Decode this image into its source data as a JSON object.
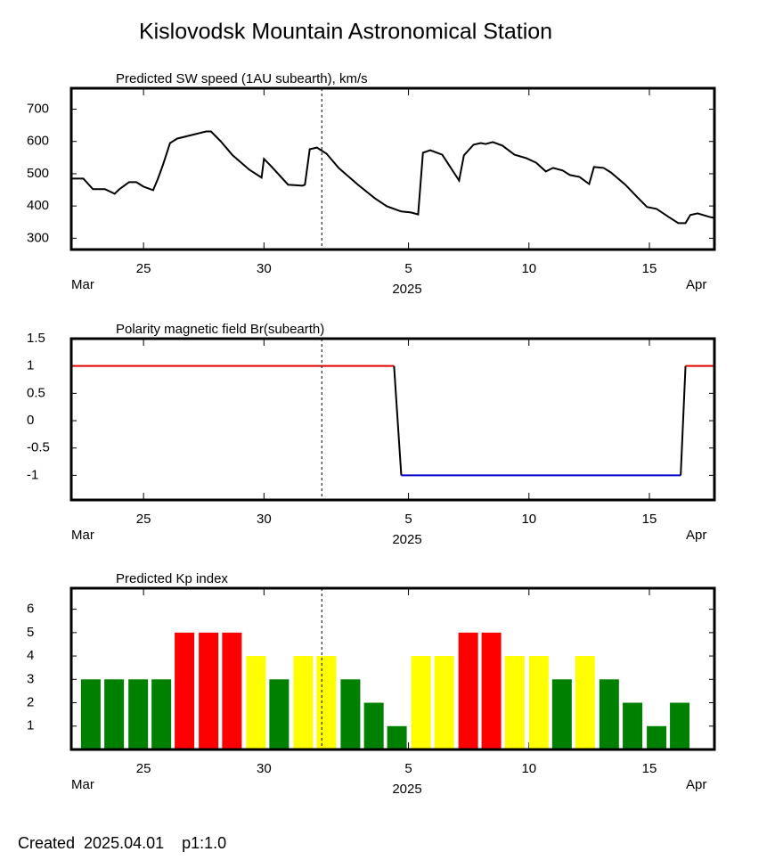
{
  "title": "Kislovodsk Mountain Astronomical Station",
  "footer": "Created  2025.04.01    p1:1.0",
  "chart_data": [
    {
      "type": "line",
      "title": "Predicted SW speed (1AU subearth), km/s",
      "xlim": [
        22,
        48.7
      ],
      "xticks": [
        25,
        30,
        {
          "value": 36,
          "label": "5"
        },
        {
          "value": 41,
          "label": "10"
        },
        {
          "value": 46,
          "label": "15"
        }
      ],
      "x_start_label": "Mar",
      "x_center_label": "2025",
      "x_end_label": "Apr",
      "vline_x": 32.4,
      "ylim": [
        265,
        765
      ],
      "yticks": [
        300,
        400,
        500,
        600,
        700
      ],
      "color": "#000000",
      "x": [
        22,
        22.5,
        22.9,
        23.4,
        23.8,
        24.0,
        24.4,
        24.7,
        25.0,
        25.4,
        25.6,
        25.8,
        26.1,
        26.4,
        27.0,
        27.6,
        27.8,
        28.2,
        28.7,
        29.4,
        29.9,
        30.0,
        30.3,
        31.0,
        31.6,
        31.7,
        31.9,
        32.2,
        32.6,
        33.1,
        33.9,
        34.6,
        35.1,
        35.7,
        36.1,
        36.4,
        36.6,
        36.9,
        37.4,
        38.1,
        38.3,
        38.7,
        39.0,
        39.2,
        39.5,
        39.9,
        40.4,
        40.9,
        41.3,
        41.7,
        42.0,
        42.4,
        42.7,
        43.1,
        43.5,
        43.7,
        44.1,
        44.4,
        45.0,
        45.5,
        45.9,
        46.3,
        46.8,
        47.2,
        47.5,
        47.7,
        48.0,
        48.5,
        48.7
      ],
      "values": [
        485,
        485,
        452,
        452,
        438,
        452,
        474,
        474,
        460,
        449,
        485,
        526,
        595,
        609,
        620,
        631,
        631,
        601,
        557,
        512,
        488,
        546,
        523,
        466,
        463,
        466,
        576,
        581,
        562,
        518,
        466,
        424,
        399,
        383,
        380,
        374,
        565,
        573,
        559,
        479,
        557,
        590,
        595,
        592,
        598,
        587,
        559,
        548,
        534,
        507,
        518,
        510,
        496,
        490,
        468,
        521,
        518,
        504,
        466,
        427,
        397,
        391,
        366,
        347,
        347,
        372,
        377,
        366,
        363
      ]
    },
    {
      "type": "line",
      "title": "Polarity magnetic field  Br(subearth)",
      "xlim": [
        22,
        48.7
      ],
      "xticks": [
        25,
        30,
        {
          "value": 36,
          "label": "5"
        },
        {
          "value": 41,
          "label": "10"
        },
        {
          "value": 46,
          "label": "15"
        }
      ],
      "x_start_label": "Mar",
      "x_center_label": "2025",
      "x_end_label": "Apr",
      "vline_x": 32.4,
      "ylim": [
        -1.45,
        1.5
      ],
      "yticks": [
        1.5,
        1,
        0.5,
        0,
        -0.5,
        -1
      ],
      "positive_color": "#e00000",
      "negative_color": "#0000cc",
      "transition_color": "#000000",
      "x": [
        22,
        35.4,
        35.7,
        47.3,
        47.5,
        48.7
      ],
      "values": [
        1,
        1,
        -1,
        -1,
        1,
        1
      ]
    },
    {
      "type": "bar",
      "title": "Predicted Kp index",
      "xlim": [
        22,
        48.7
      ],
      "xticks": [
        25,
        30,
        {
          "value": 36,
          "label": "5"
        },
        {
          "value": 41,
          "label": "10"
        },
        {
          "value": 46,
          "label": "15"
        }
      ],
      "x_start_label": "Mar",
      "x_center_label": "2025",
      "x_end_label": "Apr",
      "vline_x": 32.4,
      "ylim": [
        0,
        6.9
      ],
      "yticks": [
        1,
        2,
        3,
        4,
        5,
        6
      ],
      "x": [
        22.81,
        23.78,
        24.78,
        25.74,
        26.7,
        27.7,
        28.67,
        29.67,
        30.63,
        31.63,
        32.59,
        33.59,
        34.56,
        35.52,
        36.52,
        37.48,
        38.48,
        39.44,
        40.41,
        41.41,
        42.37,
        43.33,
        44.33,
        45.3,
        46.3,
        47.26
      ],
      "values": [
        3,
        3,
        3,
        3,
        5,
        5,
        5,
        4,
        3,
        4,
        4,
        3,
        2,
        1,
        4,
        4,
        5,
        5,
        4,
        4,
        3,
        4,
        3,
        2,
        1,
        2
      ],
      "colors": [
        "#008000",
        "#008000",
        "#008000",
        "#008000",
        "#ff0000",
        "#ff0000",
        "#ff0000",
        "#ffff00",
        "#008000",
        "#ffff00",
        "#ffff00",
        "#008000",
        "#008000",
        "#008000",
        "#ffff00",
        "#ffff00",
        "#ff0000",
        "#ff0000",
        "#ffff00",
        "#ffff00",
        "#008000",
        "#ffff00",
        "#008000",
        "#008000",
        "#008000",
        "#008000"
      ]
    }
  ]
}
